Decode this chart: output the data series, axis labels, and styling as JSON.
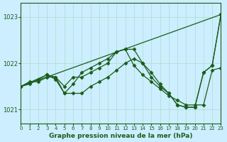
{
  "title": "Graphe pression niveau de la mer (hPa)",
  "background_color": "#cceeff",
  "line_color": "#1a5c1a",
  "grid_color": "#aaddcc",
  "xlim": [
    0,
    23
  ],
  "ylim": [
    1020.7,
    1023.3
  ],
  "yticks": [
    1021,
    1022,
    1023
  ],
  "xticks": [
    0,
    1,
    2,
    3,
    4,
    5,
    6,
    7,
    8,
    9,
    10,
    11,
    12,
    13,
    14,
    15,
    16,
    17,
    18,
    19,
    20,
    21,
    22,
    23
  ],
  "series1_x": [
    0,
    1,
    2,
    3,
    4,
    5,
    6,
    7,
    8,
    9,
    10,
    11,
    12,
    13,
    14,
    15,
    16,
    17,
    18,
    19,
    20,
    21,
    22,
    23
  ],
  "series1_y": [
    1021.5,
    1021.6,
    1021.6,
    1021.7,
    1021.7,
    1021.5,
    1021.7,
    1021.7,
    1021.8,
    1021.9,
    1022.0,
    1022.25,
    1022.3,
    1021.95,
    1021.75,
    1021.6,
    1021.45,
    1021.3,
    1021.2,
    1021.1,
    1021.1,
    1021.1,
    1021.85,
    1021.9
  ],
  "series2_x": [
    0,
    1,
    2,
    3,
    4,
    5,
    6,
    7,
    8,
    9,
    10,
    11,
    12,
    13,
    14,
    15,
    16,
    17,
    18,
    19,
    20,
    21,
    22,
    23
  ],
  "series2_y": [
    1021.5,
    1021.55,
    1021.65,
    1021.75,
    1021.65,
    1021.35,
    1021.55,
    1021.8,
    1021.9,
    1022.0,
    1022.1,
    1022.25,
    1022.3,
    1022.3,
    1022.0,
    1021.7,
    1021.5,
    1021.35,
    1021.1,
    1021.05,
    1021.05,
    1021.8,
    1021.95,
    1023.05
  ],
  "series3_x": [
    0,
    3,
    4,
    5,
    6,
    7,
    8,
    9,
    10,
    11,
    12,
    13,
    14,
    15,
    16,
    17,
    18,
    19,
    20,
    21,
    22,
    23
  ],
  "series3_y": [
    1021.5,
    1021.75,
    1021.7,
    1021.35,
    1021.35,
    1021.35,
    1021.5,
    1021.6,
    1021.7,
    1021.85,
    1022.0,
    1022.1,
    1022.0,
    1021.8,
    1021.55,
    1021.35,
    1021.1,
    1021.05,
    1021.05,
    1021.8,
    1021.95,
    1023.05
  ],
  "series4_x": [
    0,
    23
  ],
  "series4_y": [
    1021.5,
    1023.05
  ]
}
